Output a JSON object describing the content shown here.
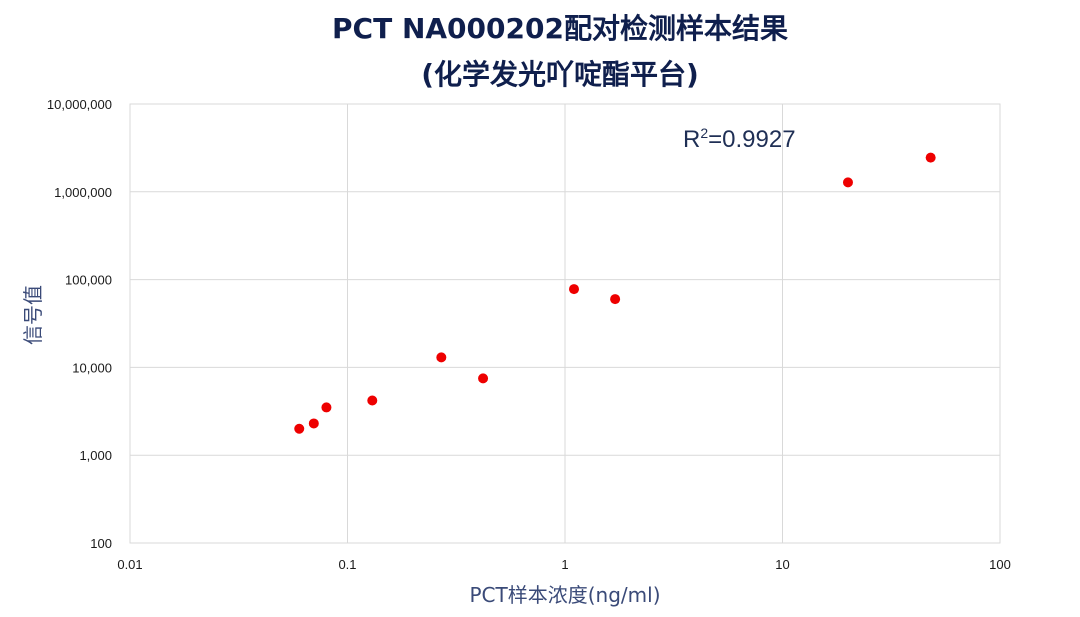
{
  "chart_data": {
    "type": "scatter",
    "title_line1": "PCT NA000202配对检测样本结果",
    "title_line2": "(化学发光吖啶酯平台)",
    "xlabel": "PCT样本浓度(ng/ml)",
    "ylabel": "信号值",
    "x_scale": "log",
    "y_scale": "log",
    "xlim": [
      0.01,
      100
    ],
    "ylim": [
      100,
      10000000
    ],
    "x_ticks": [
      "0.01",
      "0.1",
      "1",
      "10",
      "100"
    ],
    "y_ticks": [
      "100",
      "1,000",
      "10,000",
      "100,000",
      "1,000,000",
      "10,000,000"
    ],
    "grid": true,
    "annotation": {
      "prefix": "R",
      "sup": "2",
      "text": "=0.9927"
    },
    "marker_color": "#ee0000",
    "points": [
      {
        "x": 0.06,
        "y": 2000
      },
      {
        "x": 0.07,
        "y": 2300
      },
      {
        "x": 0.08,
        "y": 3500
      },
      {
        "x": 0.13,
        "y": 4200
      },
      {
        "x": 0.27,
        "y": 13000
      },
      {
        "x": 0.42,
        "y": 7500
      },
      {
        "x": 1.1,
        "y": 78000
      },
      {
        "x": 1.7,
        "y": 60000
      },
      {
        "x": 20,
        "y": 1280000
      },
      {
        "x": 48,
        "y": 2450000
      }
    ]
  }
}
